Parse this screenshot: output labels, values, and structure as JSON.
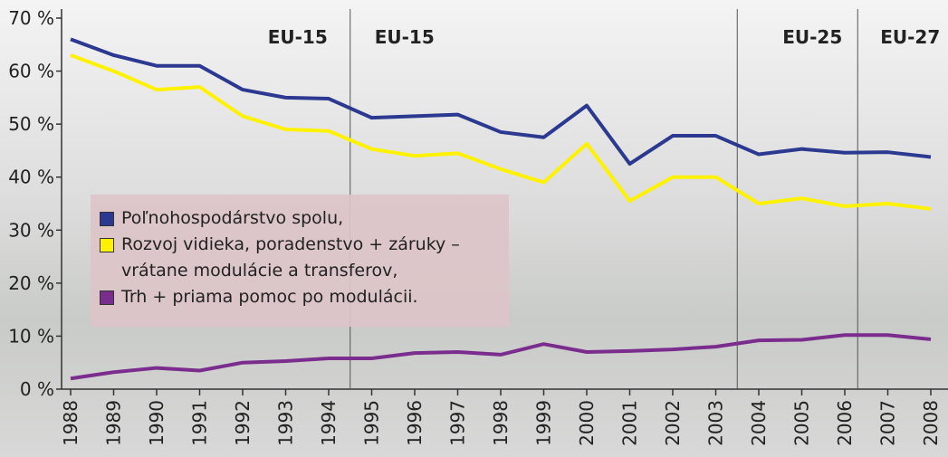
{
  "chart_data": {
    "type": "line",
    "categories": [
      "1988",
      "1989",
      "1990",
      "1991",
      "1992",
      "1993",
      "1994",
      "1995",
      "1996",
      "1997",
      "1998",
      "1999",
      "2000",
      "2001",
      "2002",
      "2003",
      "2004",
      "2005",
      "2006",
      "2007",
      "2008"
    ],
    "series": [
      {
        "name": "Poľnohospodárstvo spolu,",
        "color": "#2b3990",
        "values": [
          66,
          63,
          61,
          61,
          56.5,
          55,
          54.8,
          51.2,
          51.5,
          51.8,
          48.5,
          47.5,
          53.5,
          42.5,
          47.8,
          47.8,
          44.3,
          45.3,
          44.6,
          44.7,
          43.8
        ]
      },
      {
        "name": "Rozvoj vidieka, poradenstvo + záruky – vrátane modulácie a transferov,",
        "color": "#fff200",
        "values": [
          63,
          60,
          56.5,
          57,
          51.5,
          49,
          48.7,
          45.3,
          44,
          44.5,
          41.5,
          39,
          46.3,
          35.5,
          40,
          40,
          35,
          36,
          34.5,
          35,
          34
        ]
      },
      {
        "name": "Trh + priama pomoc po modulácii.",
        "color": "#7b2d8e",
        "values": [
          2,
          3.2,
          4,
          3.5,
          5,
          5.3,
          5.8,
          5.8,
          6.8,
          7,
          6.5,
          8.5,
          7,
          7.2,
          7.5,
          8,
          9.2,
          9.3,
          10.2,
          10.2,
          9.4
        ]
      }
    ],
    "periods": [
      "EU-15",
      "EU-15",
      "EU-25",
      "EU-27"
    ],
    "ylim": [
      0,
      70
    ],
    "yticks": [
      {
        "value": 0,
        "label": "0 %"
      },
      {
        "value": 10,
        "label": "10 %"
      },
      {
        "value": 20,
        "label": "20 %"
      },
      {
        "value": 30,
        "label": "30 %"
      },
      {
        "value": 40,
        "label": "40 %"
      },
      {
        "value": 50,
        "label": "50 %"
      },
      {
        "value": 60,
        "label": "60 %"
      },
      {
        "value": 70,
        "label": "70 %"
      }
    ]
  }
}
